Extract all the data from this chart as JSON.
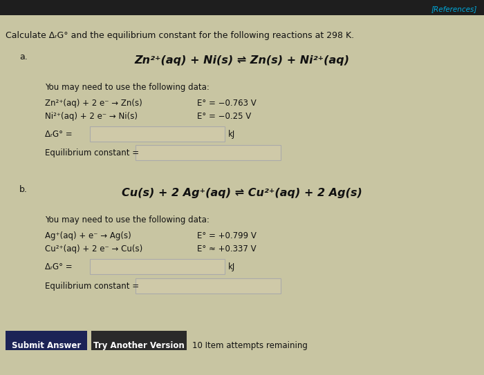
{
  "bg_color": "#c8c5a2",
  "top_bar_color": "#1e1e1e",
  "references_text": "[References]",
  "references_color": "#00aadd",
  "title": "Calculate ΔᵣG° and the equilibrium constant for the following reactions at 298 K.",
  "part_a_label": "a.",
  "part_a_reaction": "Zn²⁺(aq) + Ni(s) ⇌ Zn(s) + Ni²⁺(aq)",
  "part_a_data_intro": "You may need to use the following data:",
  "part_a_data1_left": "Zn²⁺(aq) + 2 e⁻ → Zn(s)",
  "part_a_data1_right": "E° = −0.763 V",
  "part_a_data2_left": "Ni²⁺(aq) + 2 e⁻ → Ni(s)",
  "part_a_data2_right": "E° = −0.25 V",
  "part_a_delta_g": "ΔᵣG° =",
  "part_a_kj": "kJ",
  "part_a_eq_label": "Equilibrium constant =",
  "part_b_label": "b.",
  "part_b_reaction": "Cu(s) + 2 Ag⁺(aq) ⇌ Cu²⁺(aq) + 2 Ag(s)",
  "part_b_data_intro": "You may need to use the following data:",
  "part_b_data1_left": "Ag⁺(aq) + e⁻ → Ag(s)",
  "part_b_data1_right": "E° = +0.799 V",
  "part_b_data2_left": "Cu²⁺(aq) + 2 e⁻ → Cu(s)",
  "part_b_data2_right": "E° ≈ +0.337 V",
  "part_b_delta_g": "ΔᵣG° =",
  "part_b_kj": "kJ",
  "part_b_eq_label": "Equilibrium constant =",
  "submit_btn_text": "Submit Answer",
  "try_btn_text": "Try Another Version",
  "attempts_text": "10 Item attempts remaining",
  "submit_btn_color": "#1c2356",
  "try_btn_color": "#2a2a2a",
  "input_box_color": "#cfc9a8",
  "input_border_color": "#aaaaaa",
  "text_color": "#111111",
  "white_text": "#ffffff"
}
